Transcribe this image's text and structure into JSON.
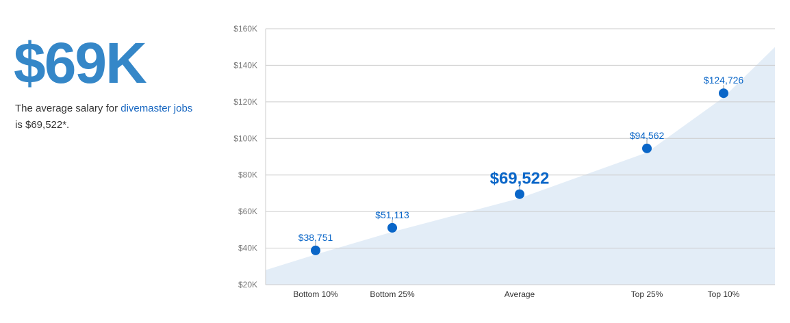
{
  "headline": "$69K",
  "summary": {
    "prefix": "The average salary for ",
    "link": "divemaster jobs",
    "suffix": " is $69,522*."
  },
  "colors": {
    "accent": "#3587c8",
    "point": "#0a66c8",
    "area": "#e3edf7"
  },
  "chart_data": {
    "type": "scatter",
    "categories": [
      "Bottom 10%",
      "Bottom 25%",
      "Average",
      "Top 25%",
      "Top 10%"
    ],
    "values": [
      38751,
      51113,
      69522,
      94562,
      124726
    ],
    "data_labels": [
      "$38,751",
      "$51,113",
      "$69,522",
      "$94,562",
      "$124,726"
    ],
    "yticks": [
      "$20K",
      "$40K",
      "$60K",
      "$80K",
      "$100K",
      "$120K",
      "$140K",
      "$160K"
    ],
    "ylim": [
      20000,
      160000
    ],
    "grid": true,
    "area_background": true
  }
}
